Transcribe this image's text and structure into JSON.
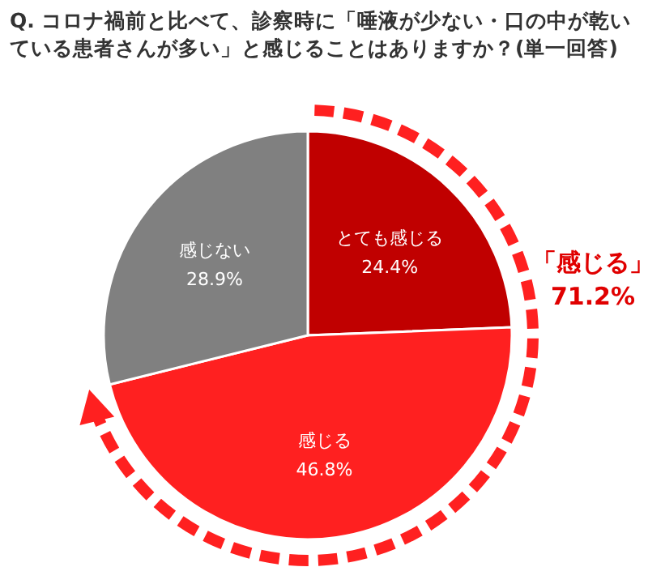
{
  "chart_data": {
    "type": "pie",
    "title": "Q. コロナ禍前と比べて、診察時に「唾液が少ない・口の中が乾いている患者さんが多い」と感じることはありますか？(単一回答)",
    "categories": [
      "とても感じる",
      "感じる",
      "感じない"
    ],
    "values": [
      24.4,
      46.8,
      28.9
    ],
    "value_labels": [
      "24.4%",
      "46.8%",
      "28.9%"
    ],
    "colors": [
      "#c00000",
      "#ff2020",
      "#808080"
    ],
    "annotations": [
      "「感じる」",
      "71.2%"
    ]
  }
}
